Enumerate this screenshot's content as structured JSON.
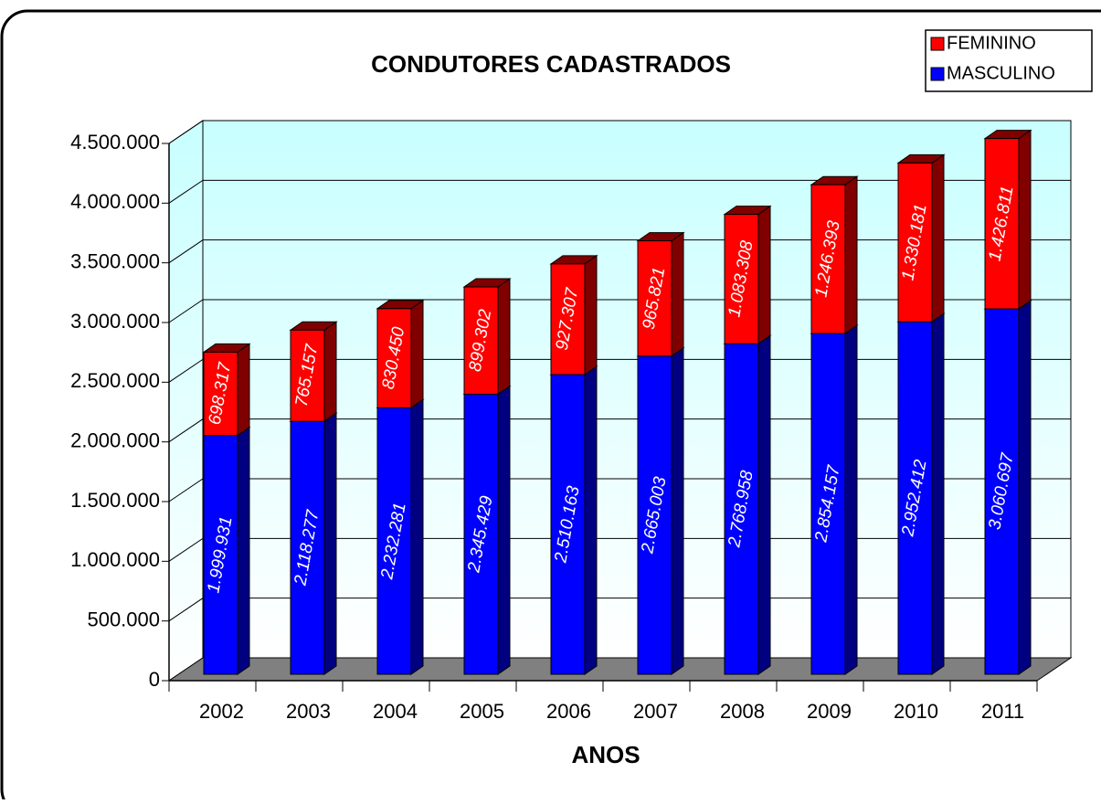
{
  "chart_data": {
    "type": "bar3d_stacked",
    "title": "CONDUTORES CADASTRADOS",
    "x_label": "ANOS",
    "categories": [
      "2002",
      "2003",
      "2004",
      "2005",
      "2006",
      "2007",
      "2008",
      "2009",
      "2010",
      "2011"
    ],
    "series": [
      {
        "name": "MASCULINO",
        "color": "#0000ff",
        "side_color": "#000080",
        "values": [
          1999931,
          2118277,
          2232281,
          2345429,
          2510163,
          2665003,
          2768958,
          2854157,
          2952412,
          3060697
        ],
        "value_labels": [
          "1.999.931",
          "2.118.277",
          "2.232.281",
          "2.345.429",
          "2.510.163",
          "2.665.003",
          "2.768.958",
          "2.854.157",
          "2.952.412",
          "3.060.697"
        ]
      },
      {
        "name": "FEMININO",
        "color": "#ff0000",
        "side_color": "#800000",
        "values": [
          698317,
          765157,
          830450,
          899302,
          927307,
          965821,
          1083308,
          1246393,
          1330181,
          1426811
        ],
        "value_labels": [
          "698.317",
          "765.157",
          "830.450",
          "899.302",
          "927.307",
          "965.821",
          "1.083.308",
          "1.246.393",
          "1.330.181",
          "1.426.811"
        ]
      }
    ],
    "ylim": [
      0,
      4500000
    ],
    "yticks": [
      0,
      {
        "value": 500000,
        "label": "500.000"
      },
      {
        "value": 1000000,
        "label": "1.000.000"
      },
      {
        "value": 1500000,
        "label": "1.500.000"
      },
      {
        "value": 2000000,
        "label": "2.000.000"
      },
      {
        "value": 2500000,
        "label": "2.500.000"
      },
      {
        "value": 3000000,
        "label": "3.000.000"
      },
      {
        "value": 3500000,
        "label": "3.500.000"
      },
      {
        "value": 4000000,
        "label": "4.000.000"
      },
      {
        "value": 4500000,
        "label": "4.500.000"
      }
    ],
    "grid": true,
    "legend": "top-right"
  }
}
